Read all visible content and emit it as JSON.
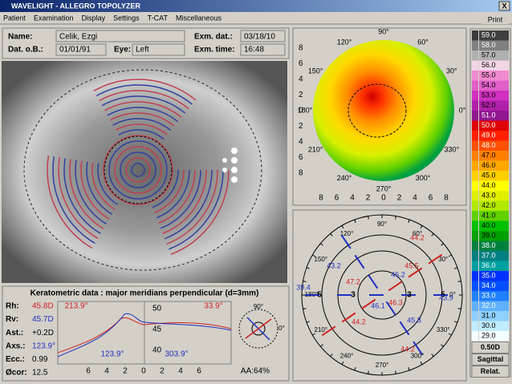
{
  "window": {
    "title": "WAVELIGHT - ALLEGRO TOPOLYZER",
    "close": "X",
    "print": "Print"
  },
  "menu": [
    "Patient",
    "Examination",
    "Display",
    "Settings",
    "T-CAT",
    "Miscellaneous"
  ],
  "patient": {
    "name_label": "Name:",
    "name": "Celik, Ezgi",
    "dob_label": "Dat. o.B.:",
    "dob": "01/01/91",
    "eye_label": "Eye:",
    "eye": "Left",
    "exam_date_label": "Exm. dat.:",
    "exam_date": "03/18/10",
    "exam_time_label": "Exm. time:",
    "exam_time": "16:48"
  },
  "color_scale": {
    "labels": [
      "59.0",
      "58.0",
      "57.0",
      "56.0",
      "55.0",
      "54.0",
      "53.0",
      "52.0",
      "51.0",
      "50.0",
      "49.0",
      "48.0",
      "47.0",
      "46.0",
      "45.0",
      "44.0",
      "43.0",
      "42.0",
      "41.0",
      "40.0",
      "39.0",
      "38.0",
      "37.0",
      "36.0",
      "35.0",
      "34.0",
      "33.0",
      "32.0",
      "31.0",
      "30.0",
      "29.0"
    ],
    "colors": [
      "#3a3a3a",
      "#808080",
      "#b0b0b0",
      "#f2d6e6",
      "#f08ad0",
      "#e060c8",
      "#d030c0",
      "#b020a8",
      "#901890",
      "#e00000",
      "#ff2000",
      "#ff5000",
      "#ff8000",
      "#ffa800",
      "#ffd000",
      "#ffff00",
      "#e0f000",
      "#b0e800",
      "#60d000",
      "#00c000",
      "#00a000",
      "#008040",
      "#008080",
      "#00a0a0",
      "#0030ff",
      "#0050ff",
      "#2080ff",
      "#60b0ff",
      "#90d0ff",
      "#c0ecff",
      "#f4ffff"
    ],
    "step": "0.50D",
    "mode": "Sagittal",
    "scale": "Relat."
  },
  "topo_map": {
    "angles": [
      "0°",
      "30°",
      "60°",
      "90°",
      "120°",
      "150°",
      "180°",
      "210°",
      "240°",
      "270°",
      "300°",
      "330°"
    ],
    "left_ticks": [
      "8",
      "6",
      "4",
      "2",
      "0",
      "2",
      "4",
      "6",
      "8"
    ],
    "bottom_ticks": [
      "8",
      "6",
      "4",
      "2",
      "0",
      "2",
      "4",
      "6",
      "8"
    ]
  },
  "meridian_map": {
    "angles": [
      "0°",
      "30°",
      "60°",
      "90°",
      "120°",
      "150°",
      "180°",
      "210°",
      "240°",
      "270°",
      "300°",
      "330°"
    ],
    "ring_labels": [
      "5",
      "3",
      "3",
      "5"
    ],
    "values": [
      "44.2",
      "45.5",
      "47.2",
      "46.2",
      "46.3",
      "46.1",
      "43.2",
      "39.4",
      "43.9",
      "45.8",
      "44.2",
      "44.2"
    ]
  },
  "keratometry": {
    "title": "Keratometric data : major meridians perpendicular (d=3mm)",
    "rows": [
      [
        "Rh:",
        "45.8D"
      ],
      [
        "Rv:",
        "45.7D"
      ],
      [
        "Ast.:",
        "+0.2D"
      ],
      [
        "Axs.:",
        "123.9°"
      ],
      [
        "Ecc.:",
        "0.99"
      ],
      [
        "Øcor:",
        "12.5"
      ]
    ],
    "angles": [
      "213.9°",
      "33.9°",
      "123.9°",
      "303.9°"
    ],
    "yticks": [
      "50",
      "45",
      "40"
    ],
    "xticks": [
      "6",
      "4",
      "2",
      "0",
      "2",
      "4",
      "6"
    ],
    "compass": [
      "90°",
      "0°"
    ],
    "aa": "AA:64%"
  }
}
